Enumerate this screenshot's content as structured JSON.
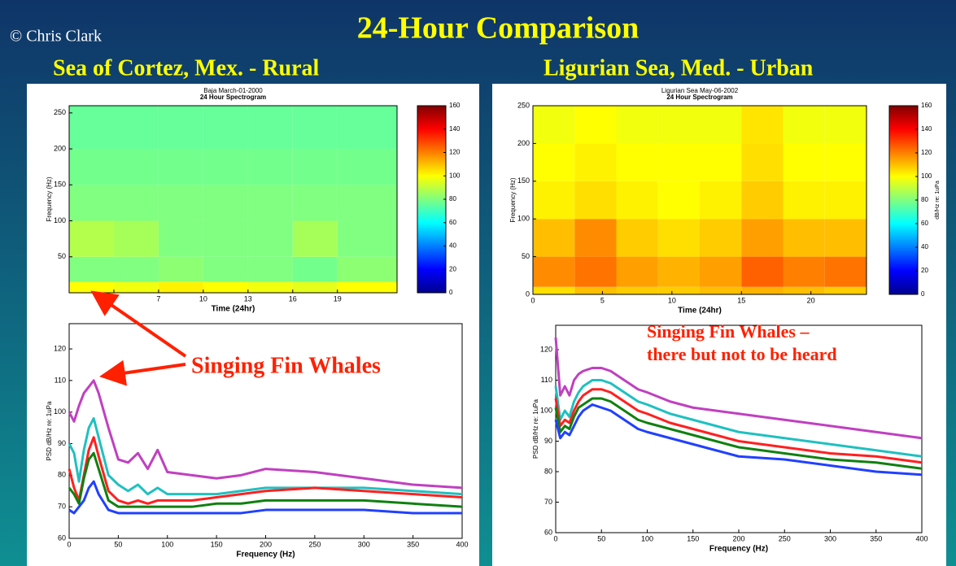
{
  "header": {
    "credit": "© Chris Clark",
    "title": "24-Hour Comparison",
    "left_subtitle": "Sea of Cortez, Mex.  - Rural",
    "right_subtitle": "Ligurian Sea, Med. - Urban"
  },
  "chart_data": [
    {
      "type": "heatmap",
      "title": "Baja March-01-2000",
      "subtitle": "24 Hour Spectrogram",
      "xlabel": "Time (24hr)",
      "ylabel": "Frequency (Hz)",
      "xbins": [
        1,
        4,
        7,
        10,
        13,
        16,
        19,
        23
      ],
      "ybins": [
        0,
        15,
        50,
        100,
        150,
        200,
        260
      ],
      "values": [
        [
          100,
          98,
          102,
          100,
          98,
          96,
          100
        ],
        [
          80,
          80,
          82,
          80,
          80,
          78,
          82
        ],
        [
          88,
          86,
          80,
          80,
          80,
          86,
          80
        ],
        [
          80,
          80,
          80,
          80,
          80,
          80,
          80
        ],
        [
          78,
          78,
          78,
          78,
          78,
          78,
          78
        ],
        [
          76,
          76,
          76,
          76,
          76,
          76,
          76
        ]
      ],
      "xlim": [
        1,
        23
      ],
      "xticks": [
        4,
        7,
        10,
        13,
        16,
        19
      ],
      "ylim": [
        0,
        260
      ],
      "yticks": [
        50,
        100,
        150,
        200,
        250
      ],
      "colorbar": {
        "lim": [
          0,
          160
        ],
        "ticks": [
          0,
          20,
          40,
          60,
          80,
          100,
          120,
          140,
          160
        ]
      }
    },
    {
      "type": "heatmap",
      "title": "Ligurian Sea May-06-2002",
      "subtitle": "24 Hour Spectrogram",
      "xlabel": "Time (24hr)",
      "ylabel": "Frequency (Hz)",
      "xbins": [
        0,
        3,
        6,
        9,
        12,
        15,
        18,
        21,
        24
      ],
      "ybins": [
        0,
        10,
        50,
        100,
        150,
        200,
        250
      ],
      "values": [
        [
          105,
          110,
          108,
          108,
          110,
          112,
          110,
          108
        ],
        [
          118,
          122,
          115,
          112,
          115,
          125,
          120,
          122
        ],
        [
          110,
          118,
          108,
          105,
          108,
          115,
          110,
          110
        ],
        [
          102,
          105,
          102,
          100,
          102,
          108,
          102,
          102
        ],
        [
          100,
          102,
          100,
          100,
          100,
          105,
          100,
          100
        ],
        [
          98,
          100,
          98,
          98,
          98,
          104,
          98,
          98
        ]
      ],
      "xlim": [
        0,
        24
      ],
      "xticks": [
        0,
        5,
        10,
        15,
        20
      ],
      "ylim": [
        0,
        250
      ],
      "yticks": [
        0,
        50,
        100,
        150,
        200,
        250
      ],
      "colorbar": {
        "lim": [
          0,
          160
        ],
        "ticks": [
          0,
          20,
          40,
          60,
          80,
          100,
          120,
          140,
          160
        ],
        "label": "dB/Hz re: 1uPa"
      }
    },
    {
      "type": "line",
      "xlabel": "Frequency (Hz)",
      "ylabel": "PSD dB/Hz re: 1uPa",
      "annotations": [
        "Singing Fin Whales"
      ],
      "x": [
        0,
        5,
        10,
        15,
        20,
        25,
        30,
        40,
        50,
        60,
        70,
        80,
        90,
        100,
        125,
        150,
        175,
        200,
        250,
        300,
        350,
        400
      ],
      "series": [
        {
          "color": "#c040c0",
          "values": [
            100,
            97,
            102,
            106,
            108,
            110,
            106,
            95,
            85,
            84,
            87,
            82,
            88,
            81,
            80,
            79,
            80,
            82,
            81,
            79,
            77,
            76
          ]
        },
        {
          "color": "#20c0c0",
          "values": [
            90,
            87,
            78,
            88,
            95,
            98,
            92,
            80,
            77,
            75,
            77,
            74,
            76,
            74,
            74,
            74,
            75,
            76,
            76,
            76,
            75,
            74
          ]
        },
        {
          "color": "#ff2020",
          "values": [
            82,
            76,
            72,
            80,
            88,
            92,
            86,
            75,
            72,
            71,
            72,
            71,
            72,
            72,
            72,
            73,
            74,
            75,
            76,
            75,
            74,
            73
          ]
        },
        {
          "color": "#108010",
          "values": [
            76,
            74,
            71,
            79,
            85,
            87,
            82,
            72,
            70,
            70,
            70,
            70,
            70,
            70,
            70,
            71,
            71,
            72,
            72,
            72,
            71,
            70
          ]
        },
        {
          "color": "#2040ff",
          "values": [
            69,
            68,
            70,
            72,
            76,
            78,
            74,
            69,
            68,
            68,
            68,
            68,
            68,
            68,
            68,
            68,
            68,
            69,
            69,
            69,
            68,
            68
          ]
        }
      ],
      "xlim": [
        0,
        400
      ],
      "xticks": [
        0,
        50,
        100,
        150,
        200,
        250,
        300,
        350,
        400
      ],
      "ylim": [
        60,
        128
      ],
      "yticks": [
        60,
        70,
        80,
        90,
        100,
        110,
        120
      ]
    },
    {
      "type": "line",
      "xlabel": "Frequency (Hz)",
      "ylabel": "PSD dB/Hz re: 1uPa",
      "annotations": [
        "Singing Fin Whales  –",
        "there but not to be heard"
      ],
      "x": [
        0,
        5,
        10,
        15,
        20,
        25,
        30,
        40,
        50,
        60,
        70,
        80,
        90,
        100,
        125,
        150,
        175,
        200,
        250,
        300,
        350,
        400
      ],
      "series": [
        {
          "color": "#c040c0",
          "values": [
            124,
            105,
            108,
            105,
            110,
            112,
            113,
            114,
            114,
            113,
            111,
            109,
            107,
            106,
            103,
            101,
            100,
            99,
            97,
            95,
            93,
            91
          ]
        },
        {
          "color": "#20c0c0",
          "values": [
            108,
            97,
            100,
            98,
            103,
            106,
            108,
            110,
            110,
            109,
            107,
            105,
            103,
            102,
            99,
            97,
            95,
            93,
            91,
            89,
            87,
            85
          ]
        },
        {
          "color": "#ff2020",
          "values": [
            104,
            95,
            97,
            96,
            100,
            103,
            105,
            107,
            107,
            106,
            104,
            102,
            100,
            99,
            96,
            94,
            92,
            90,
            88,
            86,
            85,
            83
          ]
        },
        {
          "color": "#108010",
          "values": [
            101,
            93,
            95,
            94,
            98,
            101,
            102,
            104,
            104,
            103,
            101,
            99,
            97,
            96,
            94,
            92,
            90,
            88,
            86,
            84,
            83,
            81
          ]
        },
        {
          "color": "#2040ff",
          "values": [
            97,
            91,
            93,
            92,
            95,
            98,
            100,
            102,
            101,
            100,
            98,
            96,
            94,
            93,
            91,
            89,
            87,
            85,
            84,
            82,
            80,
            79
          ]
        }
      ],
      "xlim": [
        0,
        400
      ],
      "xticks": [
        0,
        50,
        100,
        150,
        200,
        250,
        300,
        350,
        400
      ],
      "ylim": [
        60,
        128
      ],
      "yticks": [
        60,
        70,
        80,
        90,
        100,
        110,
        120
      ]
    }
  ]
}
